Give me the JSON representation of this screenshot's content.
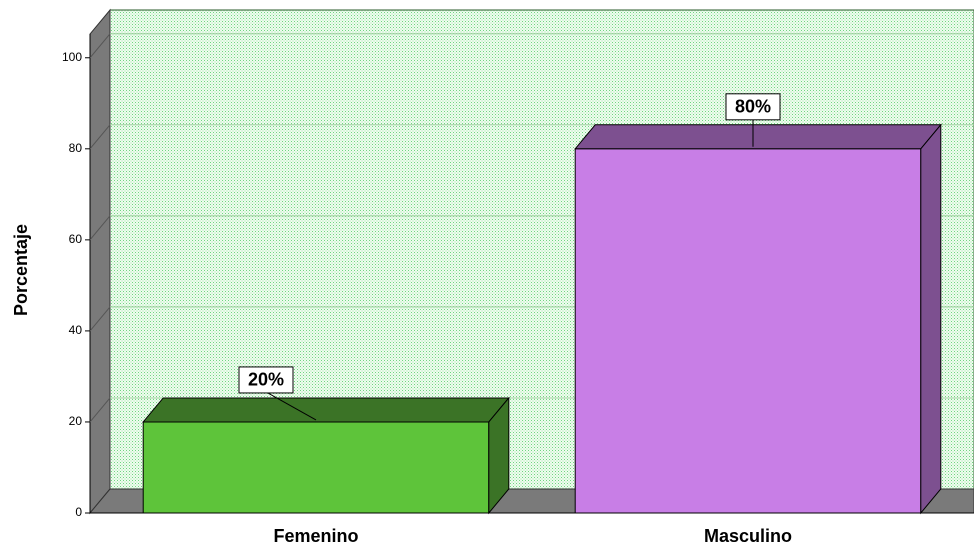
{
  "chart_data": {
    "type": "bar",
    "y_label": "Porcentaje",
    "categories": [
      "Femenino",
      "Masculino"
    ],
    "values": [
      20,
      80
    ],
    "value_labels": [
      "20%",
      "80%"
    ],
    "colors": [
      "#5ec43a",
      "#c87ee6"
    ],
    "top_colors": [
      "#3b7326",
      "#7d5090"
    ],
    "ylim": [
      0,
      105
    ],
    "yticks": [
      0,
      20,
      40,
      60,
      80,
      100
    ],
    "grid": true
  }
}
